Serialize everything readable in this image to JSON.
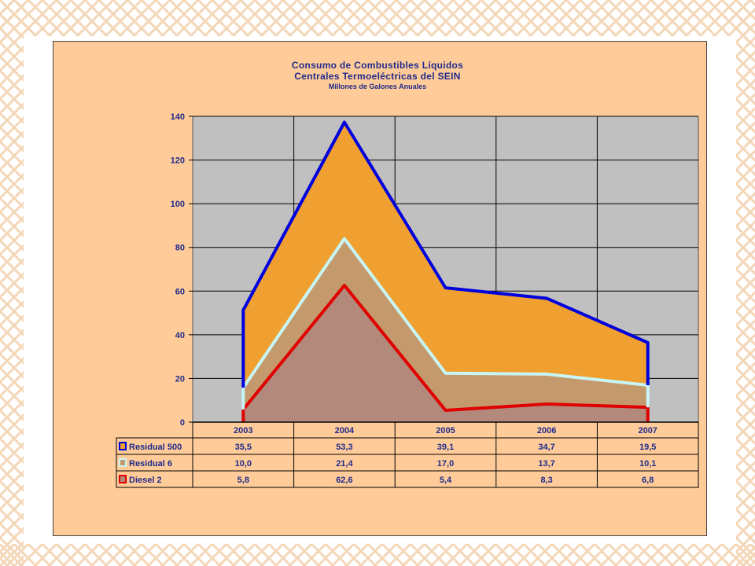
{
  "chart_data": {
    "type": "area",
    "stacked": true,
    "title": "Consumo de Combustibles Líquidos",
    "subtitle": "Centrales Termoeléctricas del SEIN",
    "subtitle2": "Millones de Galones Anuales",
    "categories": [
      "2003",
      "2004",
      "2005",
      "2006",
      "2007"
    ],
    "ylim": [
      0,
      140
    ],
    "yticks": [
      "0",
      "20",
      "40",
      "60",
      "80",
      "100",
      "120",
      "140"
    ],
    "grid": true,
    "legend": "data-table",
    "series": [
      {
        "name": "Diesel 2",
        "values": [
          5.8,
          62.6,
          5.4,
          8.3,
          6.8
        ],
        "labels": [
          "5,8",
          "62,6",
          "5,4",
          "8,3",
          "6,8"
        ],
        "fill": "#b3897c",
        "line": "#e00000"
      },
      {
        "name": "Residual 6",
        "values": [
          10.0,
          21.4,
          17.0,
          13.7,
          10.1
        ],
        "labels": [
          "10,0",
          "21,4",
          "17,0",
          "13,7",
          "10,1"
        ],
        "fill": "#c49a6c",
        "line": "#c8f5f5"
      },
      {
        "name": "Residual 500",
        "values": [
          35.5,
          53.3,
          39.1,
          34.7,
          19.5
        ],
        "labels": [
          "35,5",
          "53,3",
          "39,1",
          "34,7",
          "19,5"
        ],
        "fill": "#f0a030",
        "line": "#0000dd"
      }
    ],
    "table_order": [
      "Residual 500",
      "Residual 6",
      "Diesel 2"
    ],
    "plot_background": "#c0c0c0"
  }
}
